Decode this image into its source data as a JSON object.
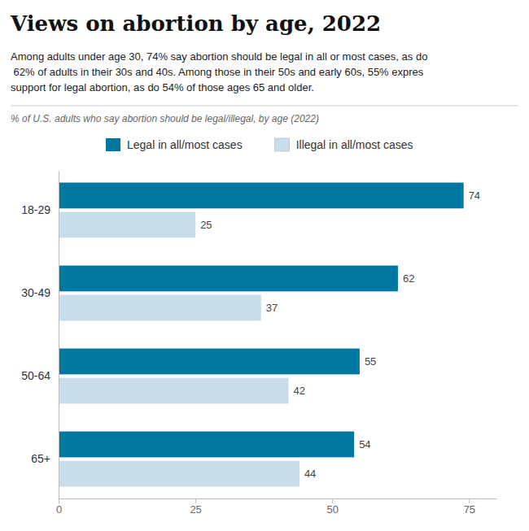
{
  "chart_data": {
    "type": "bar",
    "orientation": "horizontal",
    "title": "Views on abortion by age, 2022",
    "subtitle": [
      "Among adults under age 30, 74% say abortion should be legal in all or most cases, as do",
      " 62% of adults in their 30s and 40s. Among those in their 50s and early 60s, 55% expres",
      "support for legal abortion, as do 54% of those ages 65 and older."
    ],
    "xlabel": "% of U.S. adults who say abortion should be legal/illegal, by age (2022)",
    "categories": [
      "18-29",
      "30-49",
      "50-64",
      "65+"
    ],
    "series": [
      {
        "name": "Legal in all/most cases",
        "color": "#0077a0",
        "values": [
          74,
          62,
          55,
          54
        ]
      },
      {
        "name": "Illegal in all/most cases",
        "color": "#c8dcea",
        "values": [
          25,
          37,
          42,
          44
        ]
      }
    ],
    "xlim": [
      0,
      80
    ],
    "xticks": [
      0,
      25,
      50,
      75
    ],
    "data_labels": true,
    "grid": false,
    "legend": "top"
  }
}
